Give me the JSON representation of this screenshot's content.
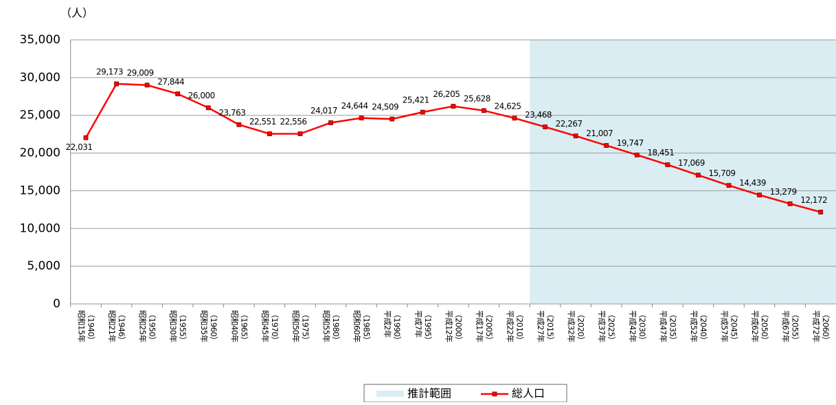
{
  "chart_data": {
    "type": "line",
    "unit_label": "（人）",
    "categories": [
      [
        "昭和15年",
        "（1940）"
      ],
      [
        "昭和21年",
        "（1946）"
      ],
      [
        "昭和25年",
        "（1950）"
      ],
      [
        "昭和30年",
        "（1955）"
      ],
      [
        "昭和35年",
        "（1960）"
      ],
      [
        "昭和40年",
        "（1965）"
      ],
      [
        "昭和45年",
        "（1970）"
      ],
      [
        "昭和50年",
        "（1975）"
      ],
      [
        "昭和55年",
        "（1980）"
      ],
      [
        "昭和60年",
        "（1985）"
      ],
      [
        "平成2年",
        "（1990）"
      ],
      [
        "平成7年",
        "（1995）"
      ],
      [
        "平成12年",
        "（2000）"
      ],
      [
        "平成17年",
        "（2005）"
      ],
      [
        "平成22年",
        "（2010）"
      ],
      [
        "平成27年",
        "（2015）"
      ],
      [
        "平成32年",
        "（2020）"
      ],
      [
        "平成37年",
        "（2025）"
      ],
      [
        "平成42年",
        "（2030）"
      ],
      [
        "平成47年",
        "（2035）"
      ],
      [
        "平成52年",
        "（2040）"
      ],
      [
        "平成57年",
        "（2045）"
      ],
      [
        "平成62年",
        "（2050）"
      ],
      [
        "平成67年",
        "（2055）"
      ],
      [
        "平成72年",
        "（2060）"
      ]
    ],
    "series": [
      {
        "name": "総人口",
        "color": "#ff0000",
        "values": [
          22031,
          29173,
          29009,
          27844,
          26000,
          23763,
          22551,
          22556,
          24017,
          24644,
          24509,
          25421,
          26205,
          25628,
          24625,
          23468,
          22267,
          21007,
          19747,
          18451,
          17069,
          15709,
          14439,
          13279,
          12172
        ],
        "value_labels": [
          "22,031",
          "29,173",
          "29,009",
          "27,844",
          "26,000",
          "23,763",
          "22,551",
          "22,556",
          "24,017",
          "24,644",
          "24,509",
          "25,421",
          "26,205",
          "25,628",
          "24,625",
          "23,468",
          "22,267",
          "21,007",
          "19,747",
          "18,451",
          "17,069",
          "15,709",
          "14,439",
          "13,279",
          "12,172"
        ]
      }
    ],
    "projection": {
      "label": "推計範囲",
      "start": 15,
      "color": "#daedf3"
    },
    "ylim": [
      0,
      35000
    ],
    "yticks": [
      0,
      {
        "value": 5000,
        "label": "5,000"
      },
      {
        "value": 10000,
        "label": "10,000"
      },
      {
        "value": 15000,
        "label": "15,000"
      },
      {
        "value": 20000,
        "label": "20,000"
      },
      {
        "value": 25000,
        "label": "25,000"
      },
      {
        "value": 30000,
        "label": "30,000"
      },
      {
        "value": 35000,
        "label": "35,000"
      }
    ],
    "grid": true
  }
}
